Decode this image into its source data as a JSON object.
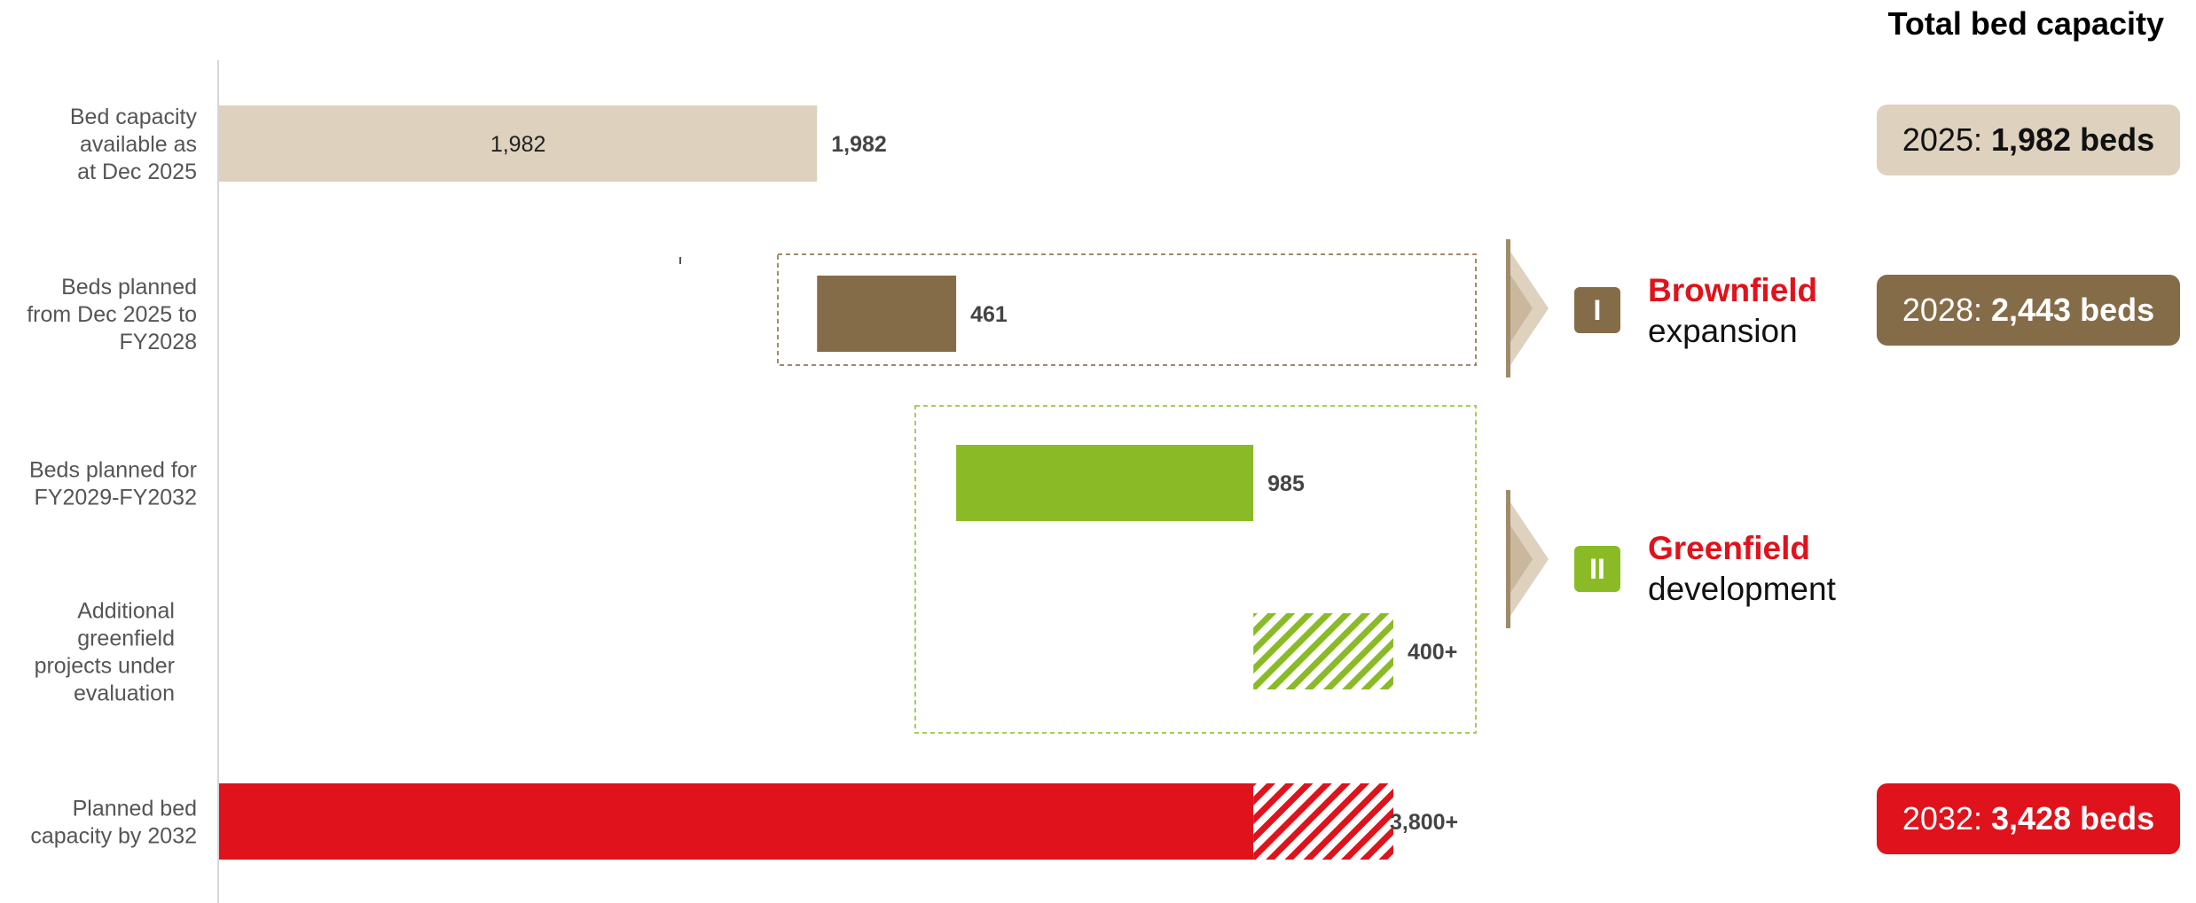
{
  "chart_data": {
    "type": "bar",
    "orientation": "horizontal-waterfall",
    "categories": [
      "Bed capacity available as at Dec 2025",
      "Beds planned from Dec 2025 to FY2028",
      "Beds planned for FY2029-FY2032",
      "Additional greenfield projects under evaluation",
      "Planned bed capacity by 2032"
    ],
    "category_lines": [
      [
        "Bed capacity",
        "available as",
        "at Dec 2025"
      ],
      [
        "Beds planned",
        "from Dec 2025 to",
        "FY2028"
      ],
      [
        "Beds planned for",
        "FY2029-FY2032"
      ],
      [
        "Additional",
        "greenfield",
        "projects under",
        "evaluation"
      ],
      [
        "Planned bed",
        "capacity by 2032"
      ]
    ],
    "bars": [
      {
        "start": 0,
        "end": 1982,
        "color": "#ded1bd",
        "pattern": "solid",
        "inner_label": "1,982",
        "end_label": "1,982"
      },
      {
        "start": 1982,
        "end": 2443,
        "color": "#856c48",
        "pattern": "solid",
        "end_label": "461"
      },
      {
        "start": 2443,
        "end": 3428,
        "color": "#8abb26",
        "pattern": "solid",
        "end_label": "985"
      },
      {
        "start": 3428,
        "end": 3892,
        "color": "#8abb26",
        "pattern": "hatched",
        "end_label": "400+"
      },
      {
        "start": 0,
        "end": 3428,
        "color": "#e0121b",
        "pattern": "solid",
        "extra_end": 3892,
        "extra_pattern": "hatched",
        "end_label": "3,800+"
      }
    ],
    "xlim": [
      0,
      3892
    ],
    "grid": false,
    "heading": "Total bed capacity",
    "totals": [
      {
        "year": "2025:",
        "beds": "1,982 beds",
        "color": "#ded1bd"
      },
      {
        "year": "2028:",
        "beds": "2,443 beds",
        "color": "#856c48"
      },
      {
        "year": "2032:",
        "beds": "3,428 beds",
        "color": "#e0121b"
      }
    ],
    "phases": [
      {
        "badge": "I",
        "title": "Brownfield",
        "subtitle": "expansion",
        "color": "#856c48"
      },
      {
        "badge": "II",
        "title": "Greenfield",
        "subtitle": "development",
        "color": "#8abb26"
      }
    ]
  }
}
